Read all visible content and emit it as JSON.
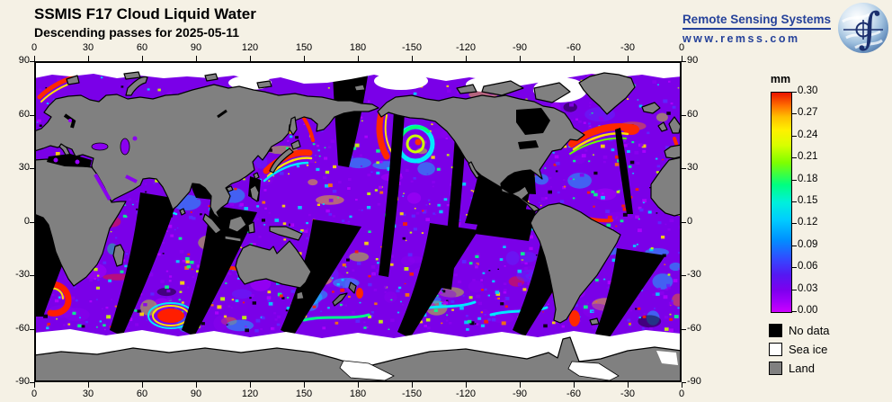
{
  "header": {
    "title": "SSMIS F17 Cloud Liquid Water",
    "subtitle": "Descending passes for 2025-05-11"
  },
  "branding": {
    "name": "Remote Sensing Systems",
    "url": "www.remss.com",
    "color": "#26429A"
  },
  "axes": {
    "lon_labels": [
      "0",
      "30",
      "60",
      "90",
      "120",
      "150",
      "180",
      "-150",
      "-120",
      "-90",
      "-60",
      "-30",
      "0"
    ],
    "lat_labels": [
      "90",
      "60",
      "30",
      "0",
      "-30",
      "-60",
      "-90"
    ]
  },
  "colorbar": {
    "title": "mm",
    "unit": "mm",
    "range": [
      0.0,
      0.3
    ],
    "step": 0.03,
    "tick_labels": [
      "0.30",
      "0.27",
      "0.24",
      "0.21",
      "0.18",
      "0.15",
      "0.12",
      "0.09",
      "0.06",
      "0.03",
      "0.00"
    ],
    "gradient": [
      [
        0.0,
        "#CC00FF"
      ],
      [
        0.05,
        "#A000FA"
      ],
      [
        0.1,
        "#7D00EE"
      ],
      [
        0.17,
        "#5518F2"
      ],
      [
        0.24,
        "#3448FF"
      ],
      [
        0.33,
        "#0090FF"
      ],
      [
        0.42,
        "#00CCFF"
      ],
      [
        0.5,
        "#00F0DC"
      ],
      [
        0.58,
        "#00FF80"
      ],
      [
        0.68,
        "#7DFF00"
      ],
      [
        0.76,
        "#D8FF00"
      ],
      [
        0.83,
        "#FFF000"
      ],
      [
        0.89,
        "#FFBE00"
      ],
      [
        0.94,
        "#FF7000"
      ],
      [
        1.0,
        "#EA1400"
      ]
    ]
  },
  "legend": {
    "items": [
      {
        "label": "No data",
        "color": "#000000"
      },
      {
        "label": "Sea ice",
        "color": "#FFFFFF"
      },
      {
        "label": "Land",
        "color": "#808080"
      }
    ]
  },
  "map": {
    "lon_range": [
      0,
      360
    ],
    "lat_range": [
      90,
      -90
    ],
    "colors": {
      "land": "#808080",
      "no_data": "#000000",
      "sea_ice": "#FFFFFF",
      "ocean_base": "#7A00E8"
    },
    "palette": [
      "#8A00F0",
      "#B000FF",
      "#5A2AFF",
      "#00D4FF",
      "#00FF88",
      "#C8FF00",
      "#FFE000",
      "#FF7700",
      "#FF1E00",
      "#000000"
    ]
  }
}
